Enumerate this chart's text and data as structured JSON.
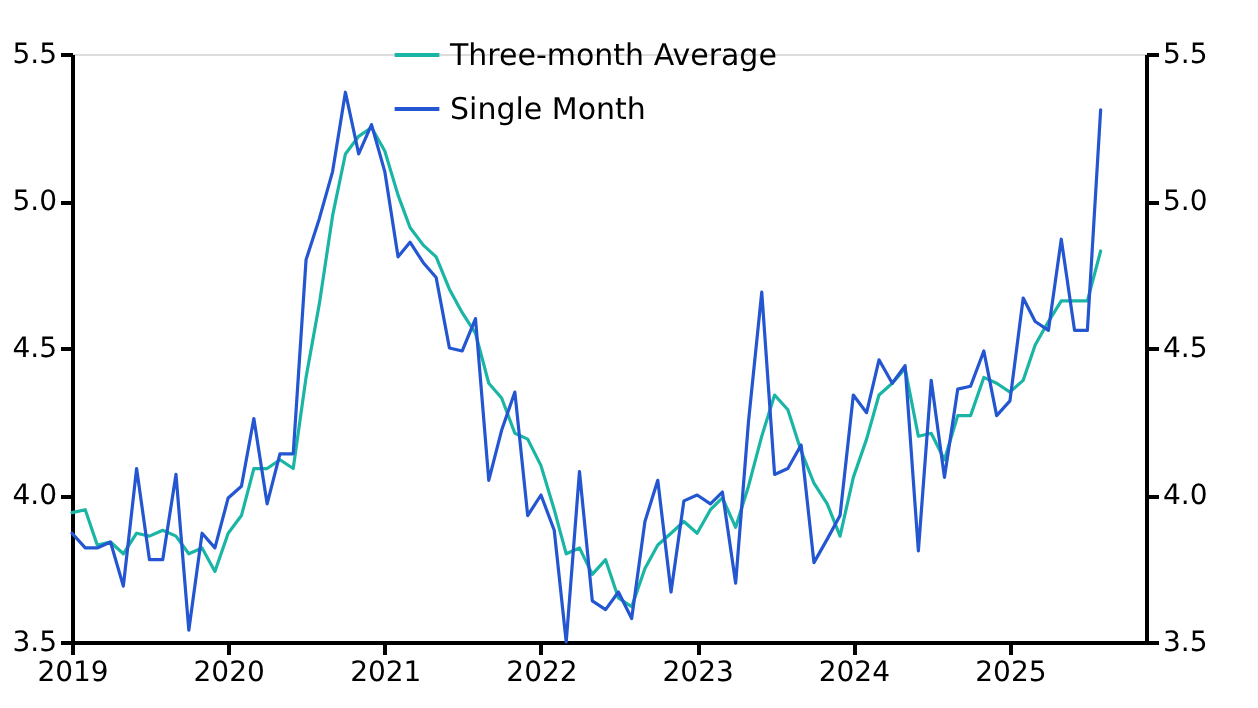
{
  "chart_data": {
    "type": "line",
    "x": [
      "2019-01",
      "2019-02",
      "2019-03",
      "2019-04",
      "2019-05",
      "2019-06",
      "2019-07",
      "2019-08",
      "2019-09",
      "2019-10",
      "2019-11",
      "2019-12",
      "2020-01",
      "2020-02",
      "2020-03",
      "2020-04",
      "2020-05",
      "2020-06",
      "2020-07",
      "2020-08",
      "2020-09",
      "2020-10",
      "2020-11",
      "2020-12",
      "2021-01",
      "2021-02",
      "2021-03",
      "2021-04",
      "2021-05",
      "2021-06",
      "2021-07",
      "2021-08",
      "2021-09",
      "2021-10",
      "2021-11",
      "2021-12",
      "2022-01",
      "2022-02",
      "2022-03",
      "2022-04",
      "2022-05",
      "2022-06",
      "2022-07",
      "2022-08",
      "2022-09",
      "2022-10",
      "2022-11",
      "2022-12",
      "2023-01",
      "2023-02",
      "2023-03",
      "2023-04",
      "2023-05",
      "2023-06",
      "2023-07",
      "2023-08",
      "2023-09",
      "2023-10",
      "2023-11",
      "2023-12",
      "2024-01",
      "2024-02",
      "2024-03",
      "2024-04",
      "2024-05",
      "2024-06",
      "2024-07",
      "2024-08",
      "2024-09",
      "2024-10",
      "2024-11",
      "2024-12",
      "2025-01",
      "2025-02",
      "2025-03",
      "2025-04",
      "2025-05",
      "2025-06",
      "2025-07",
      "2025-08"
    ],
    "series": [
      {
        "name": "Three-month Average",
        "color": "#1ab5a5",
        "values": [
          3.94,
          3.95,
          3.83,
          3.84,
          3.8,
          3.87,
          3.86,
          3.88,
          3.86,
          3.8,
          3.82,
          3.74,
          3.87,
          3.93,
          4.09,
          4.09,
          4.12,
          4.09,
          4.4,
          4.65,
          4.95,
          5.16,
          5.22,
          5.25,
          5.17,
          5.02,
          4.91,
          4.85,
          4.81,
          4.7,
          4.62,
          4.55,
          4.38,
          4.33,
          4.21,
          4.19,
          4.1,
          3.95,
          3.8,
          3.82,
          3.73,
          3.78,
          3.65,
          3.62,
          3.75,
          3.83,
          3.87,
          3.91,
          3.87,
          3.95,
          3.99,
          3.89,
          4.03,
          4.2,
          4.34,
          4.29,
          4.15,
          4.04,
          3.97,
          3.86,
          4.06,
          4.19,
          4.34,
          4.38,
          4.43,
          4.2,
          4.21,
          4.12,
          4.27,
          4.27,
          4.4,
          4.38,
          4.35,
          4.39,
          4.51,
          4.59,
          4.66,
          4.66,
          4.66,
          4.83
        ]
      },
      {
        "name": "Single Month",
        "color": "#2356d0",
        "values": [
          3.87,
          3.82,
          3.82,
          3.84,
          3.69,
          4.09,
          3.78,
          3.78,
          4.07,
          3.54,
          3.87,
          3.82,
          3.99,
          4.03,
          4.26,
          3.97,
          4.14,
          4.14,
          4.8,
          4.94,
          5.1,
          5.37,
          5.16,
          5.26,
          5.1,
          4.81,
          4.86,
          4.79,
          4.74,
          4.5,
          4.49,
          4.6,
          4.05,
          4.22,
          4.35,
          3.93,
          4.0,
          3.88,
          3.5,
          4.08,
          3.64,
          3.61,
          3.67,
          3.58,
          3.91,
          4.05,
          3.67,
          3.98,
          4.0,
          3.97,
          4.01,
          3.7,
          4.25,
          4.69,
          4.07,
          4.09,
          4.17,
          3.77,
          3.85,
          3.93,
          4.34,
          4.28,
          4.46,
          4.38,
          4.44,
          3.81,
          4.39,
          4.06,
          4.36,
          4.37,
          4.49,
          4.27,
          4.32,
          4.67,
          4.59,
          4.56,
          4.87,
          4.56,
          4.56,
          5.31
        ]
      }
    ],
    "xlim": [
      "2019-01",
      "2025-11-15"
    ],
    "xticks": [
      "2019",
      "2020",
      "2021",
      "2022",
      "2023",
      "2024",
      "2025"
    ],
    "ylim": [
      3.5,
      5.5
    ],
    "yticks": [
      3.5,
      {
        "value": 4,
        "label": "4.0"
      },
      4.5,
      {
        "value": 5,
        "label": "5.0"
      },
      5.5
    ],
    "y2lim": [
      3.5,
      5.5
    ],
    "y2ticks": [
      3.5,
      {
        "value": 4,
        "label": "4.0"
      },
      4.5,
      {
        "value": 5,
        "label": "5.0"
      },
      5.5
    ],
    "legend": "top",
    "grid": false,
    "marker": "none",
    "line_style": "solid"
  }
}
